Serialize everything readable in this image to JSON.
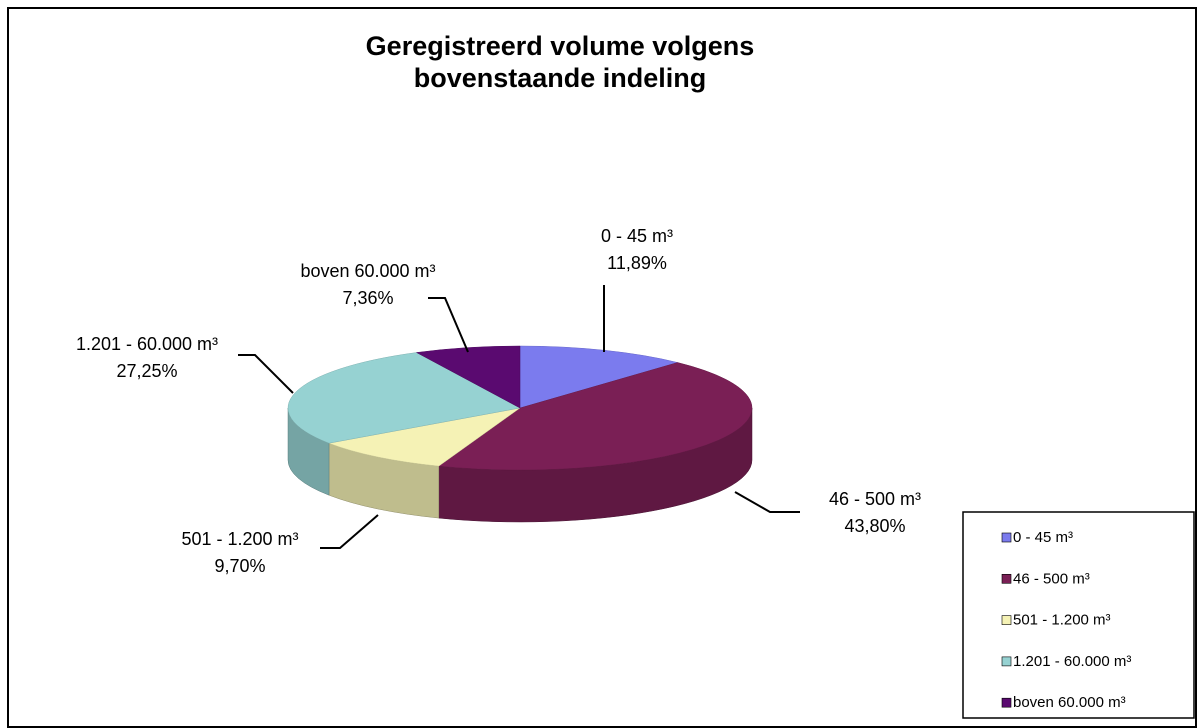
{
  "chart_data": {
    "type": "pie",
    "title": "Geregistreerd volume volgens bovenstaande indeling",
    "categories": [
      "0 - 45 m³",
      "46 - 500 m³",
      "501 - 1.200 m³",
      "1.201 - 60.000 m³",
      "boven 60.000 m³"
    ],
    "values": [
      11.89,
      43.8,
      9.7,
      27.25,
      7.36
    ],
    "value_labels": [
      "11,89%",
      "43,80%",
      "9,70%",
      "27,25%",
      "7,36%"
    ],
    "colors": [
      "#7b7bee",
      "#7a1f55",
      "#f5f2b5",
      "#96d2d2",
      "#5a0a70"
    ],
    "legend": "bottom-right"
  }
}
